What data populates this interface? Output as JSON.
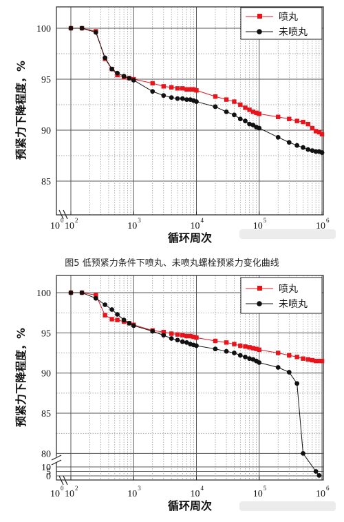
{
  "caption": "图5 低预紧力条件下喷丸、未喷丸螺栓预紧力变化曲线",
  "chart_data": [
    {
      "type": "line",
      "xscale": "log",
      "xlim": [
        1,
        1000000
      ],
      "ylim": [
        83,
        102
      ],
      "xlabel": "循环周次",
      "ylabel": "预紧力下降程度，%",
      "x_ticks": [
        "10",
        "10",
        "10",
        "10",
        "10",
        "10"
      ],
      "x_tick_exponents": [
        "0",
        "2",
        "3",
        "4",
        "5",
        "6"
      ],
      "y_ticks": [
        85,
        90,
        95,
        100
      ],
      "legend_position": "top-right",
      "grid": true,
      "series": [
        {
          "name": "喷丸",
          "color": "#e8141c",
          "marker": "square",
          "points": [
            [
              1,
              100
            ],
            [
              150,
              100
            ],
            [
              250,
              99.7
            ],
            [
              350,
              97
            ],
            [
              450,
              96
            ],
            [
              550,
              95.4
            ],
            [
              700,
              95.2
            ],
            [
              850,
              95.1
            ],
            [
              1000,
              95
            ],
            [
              2000,
              94.6
            ],
            [
              3000,
              94.3
            ],
            [
              4000,
              94.2
            ],
            [
              5000,
              94.1
            ],
            [
              6000,
              94.1
            ],
            [
              7000,
              94
            ],
            [
              8000,
              94
            ],
            [
              9000,
              94
            ],
            [
              10000,
              93.9
            ],
            [
              20000,
              93.3
            ],
            [
              30000,
              93
            ],
            [
              40000,
              92.8
            ],
            [
              50000,
              92.5
            ],
            [
              60000,
              92.2
            ],
            [
              70000,
              92
            ],
            [
              80000,
              91.8
            ],
            [
              90000,
              91.7
            ],
            [
              100000,
              91.6
            ],
            [
              200000,
              91.3
            ],
            [
              300000,
              91.1
            ],
            [
              400000,
              90.9
            ],
            [
              500000,
              90.8
            ],
            [
              600000,
              90.6
            ],
            [
              700000,
              90.2
            ],
            [
              800000,
              89.9
            ],
            [
              900000,
              89.8
            ],
            [
              1000000,
              89.6
            ]
          ]
        },
        {
          "name": "未喷丸",
          "color": "#111111",
          "marker": "circle",
          "points": [
            [
              1,
              100
            ],
            [
              150,
              100
            ],
            [
              250,
              99.6
            ],
            [
              350,
              97.1
            ],
            [
              450,
              96
            ],
            [
              550,
              95.6
            ],
            [
              700,
              95.3
            ],
            [
              850,
              95.1
            ],
            [
              1000,
              94.9
            ],
            [
              2000,
              93.8
            ],
            [
              3000,
              93.4
            ],
            [
              4000,
              93.2
            ],
            [
              5000,
              93.1
            ],
            [
              6000,
              93.1
            ],
            [
              7000,
              93
            ],
            [
              8000,
              93
            ],
            [
              9000,
              92.9
            ],
            [
              10000,
              92.8
            ],
            [
              20000,
              92.3
            ],
            [
              30000,
              91.8
            ],
            [
              40000,
              91.5
            ],
            [
              50000,
              91.1
            ],
            [
              60000,
              90.9
            ],
            [
              70000,
              90.6
            ],
            [
              80000,
              90.5
            ],
            [
              90000,
              90.3
            ],
            [
              100000,
              90.2
            ],
            [
              200000,
              89.3
            ],
            [
              300000,
              88.8
            ],
            [
              400000,
              88.5
            ],
            [
              500000,
              88.3
            ],
            [
              600000,
              88.1
            ],
            [
              700000,
              88
            ],
            [
              800000,
              87.9
            ],
            [
              900000,
              87.9
            ],
            [
              1000000,
              87.8
            ]
          ]
        }
      ]
    },
    {
      "type": "line",
      "xscale": "log",
      "xlim": [
        1,
        1000000
      ],
      "ylim_upper": [
        79,
        101
      ],
      "ylim_lower": [
        0,
        10
      ],
      "xlabel": "循环周次",
      "ylabel": "预紧力下降程度，%",
      "x_ticks": [
        "10",
        "10",
        "10",
        "10",
        "10",
        "10"
      ],
      "x_tick_exponents": [
        "0",
        "2",
        "3",
        "4",
        "5",
        "6"
      ],
      "y_ticks": [
        0,
        5,
        10,
        80,
        85,
        90,
        95,
        100
      ],
      "legend_position": "top-right",
      "grid": true,
      "series": [
        {
          "name": "喷丸",
          "color": "#e8141c",
          "marker": "square",
          "points": [
            [
              1,
              100
            ],
            [
              150,
              100
            ],
            [
              250,
              99.7
            ],
            [
              350,
              97.2
            ],
            [
              450,
              96.7
            ],
            [
              550,
              96.6
            ],
            [
              700,
              96.4
            ],
            [
              850,
              96.2
            ],
            [
              1000,
              96
            ],
            [
              2000,
              95.3
            ],
            [
              3000,
              95.1
            ],
            [
              4000,
              94.9
            ],
            [
              5000,
              94.8
            ],
            [
              6000,
              94.7
            ],
            [
              7000,
              94.6
            ],
            [
              8000,
              94.6
            ],
            [
              9000,
              94.5
            ],
            [
              10000,
              94.4
            ],
            [
              20000,
              94
            ],
            [
              30000,
              93.8
            ],
            [
              40000,
              93.6
            ],
            [
              50000,
              93.4
            ],
            [
              60000,
              93.3
            ],
            [
              70000,
              93.2
            ],
            [
              80000,
              93.1
            ],
            [
              90000,
              93
            ],
            [
              100000,
              92.9
            ],
            [
              200000,
              92.5
            ],
            [
              300000,
              92.2
            ],
            [
              400000,
              92
            ],
            [
              500000,
              91.8
            ],
            [
              600000,
              91.7
            ],
            [
              700000,
              91.6
            ],
            [
              800000,
              91.5
            ],
            [
              900000,
              91.5
            ],
            [
              1000000,
              91.5
            ]
          ]
        },
        {
          "name": "未喷丸",
          "color": "#111111",
          "marker": "circle",
          "points": [
            [
              1,
              100
            ],
            [
              150,
              100
            ],
            [
              250,
              99.3
            ],
            [
              350,
              98.5
            ],
            [
              450,
              97.9
            ],
            [
              550,
              97.3
            ],
            [
              700,
              96.6
            ],
            [
              850,
              96.2
            ],
            [
              1000,
              95.9
            ],
            [
              2000,
              95.2
            ],
            [
              3000,
              94.7
            ],
            [
              4000,
              94.3
            ],
            [
              5000,
              94.1
            ],
            [
              6000,
              93.9
            ],
            [
              7000,
              93.8
            ],
            [
              8000,
              93.6
            ],
            [
              9000,
              93.5
            ],
            [
              10000,
              93.4
            ],
            [
              20000,
              93
            ],
            [
              30000,
              92.7
            ],
            [
              40000,
              92.5
            ],
            [
              50000,
              92.2
            ],
            [
              60000,
              92
            ],
            [
              70000,
              91.8
            ],
            [
              80000,
              91.7
            ],
            [
              90000,
              91.5
            ],
            [
              100000,
              91.3
            ],
            [
              200000,
              90.7
            ],
            [
              300000,
              90.1
            ],
            [
              400000,
              88.7
            ],
            [
              500000,
              80
            ],
            [
              800000,
              5
            ],
            [
              900000,
              0.5
            ]
          ]
        }
      ]
    }
  ]
}
